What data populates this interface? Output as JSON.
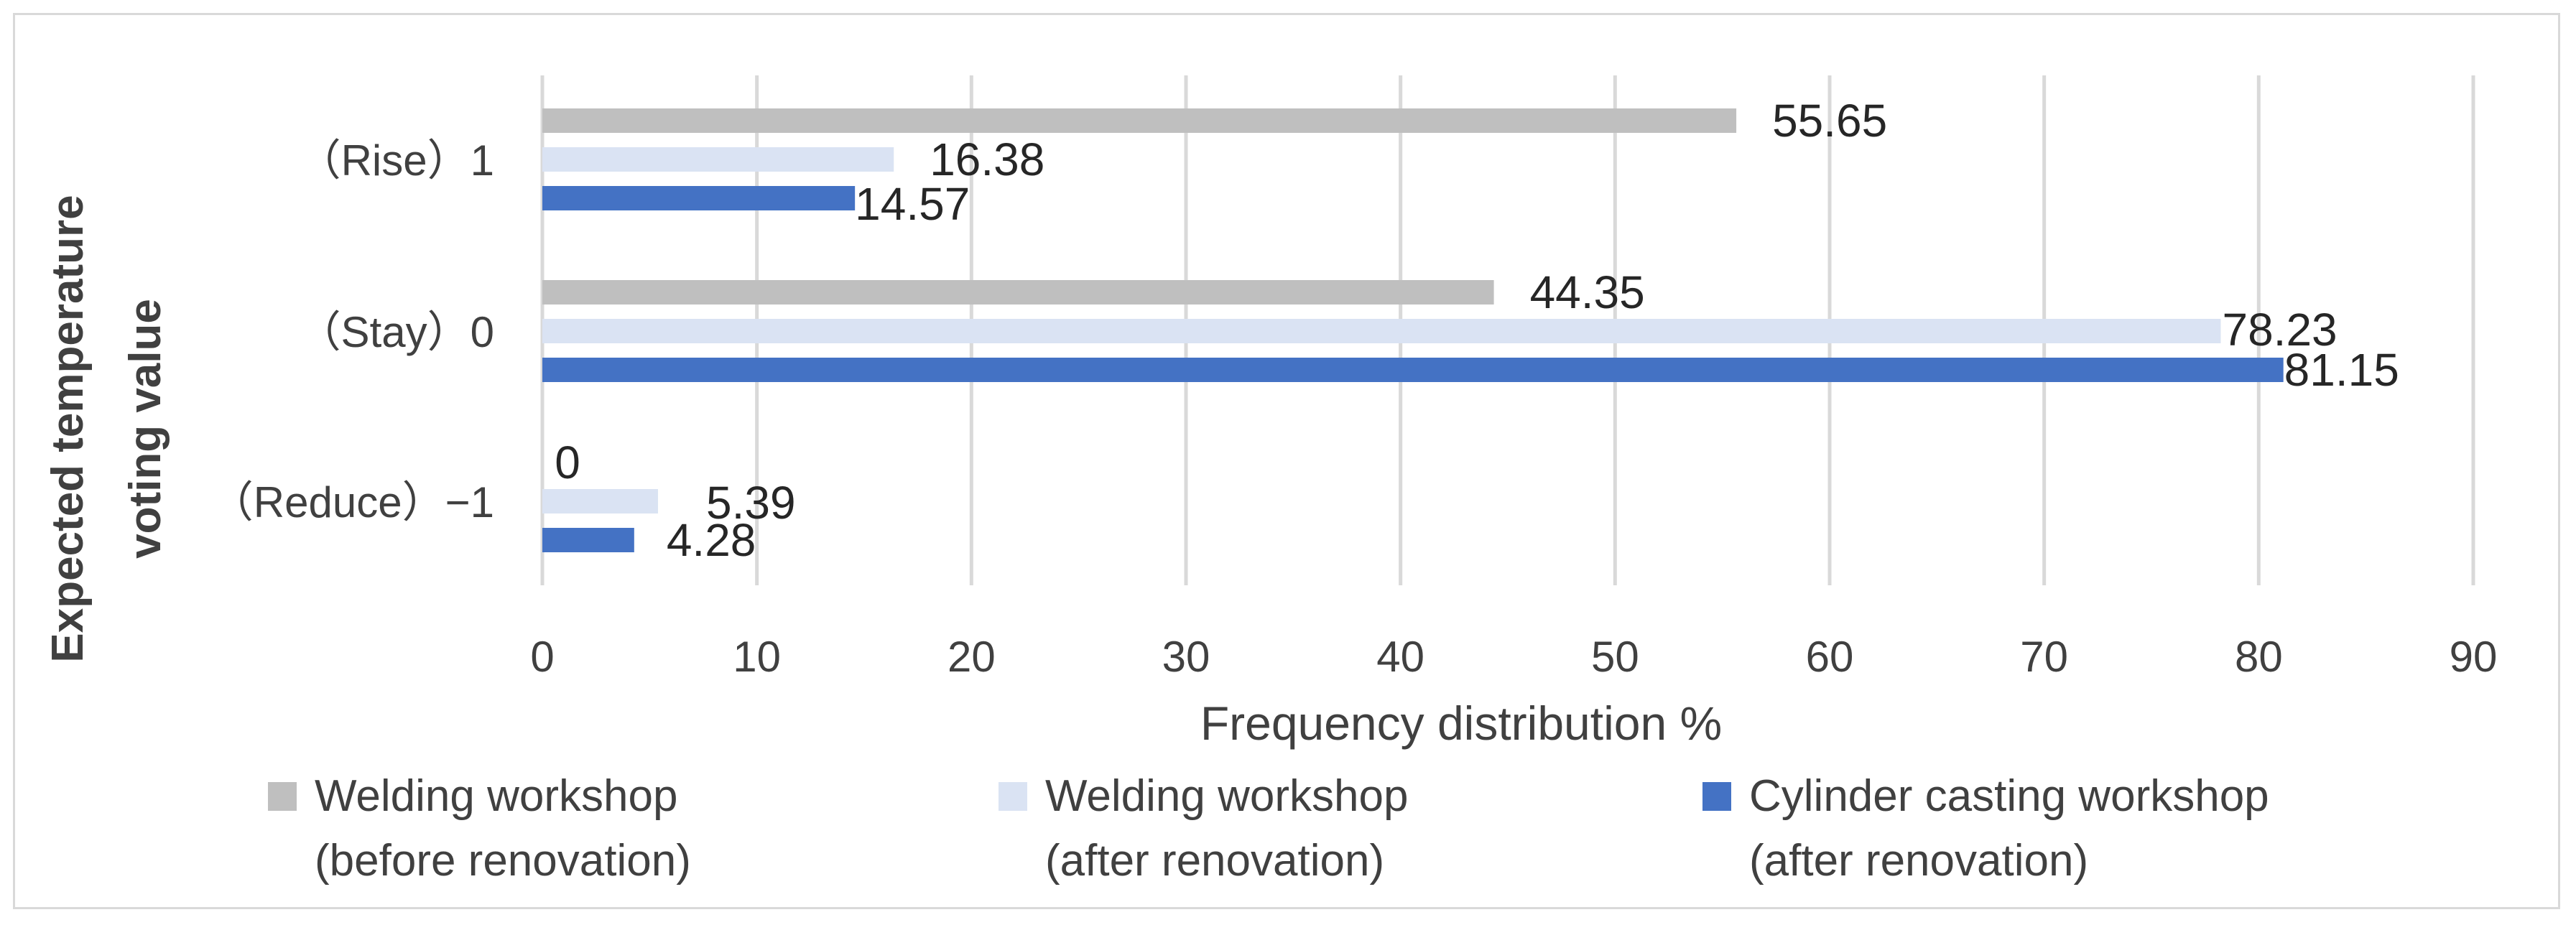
{
  "chart_data": {
    "type": "bar",
    "orientation": "horizontal",
    "categories": [
      "（Rise）1",
      "（Stay）0",
      "（Reduce）−1"
    ],
    "series": [
      {
        "name": "Welding workshop (before renovation)",
        "legend_lines": [
          "Welding workshop",
          "(before renovation)"
        ],
        "color": "#bfbfbf",
        "values": [
          55.65,
          44.35,
          0
        ],
        "labels": [
          "55.65",
          "44.35",
          "0"
        ]
      },
      {
        "name": "Welding workshop (after renovation)",
        "legend_lines": [
          "Welding workshop",
          "(after renovation)"
        ],
        "color": "#dae3f3",
        "values": [
          16.38,
          78.23,
          5.39
        ],
        "labels": [
          "16.38",
          "78.23",
          "5.39"
        ]
      },
      {
        "name": "Cylinder casting workshop (after renovation)",
        "legend_lines": [
          "Cylinder casting workshop",
          "(after renovation)"
        ],
        "color": "#4472c4",
        "values": [
          14.57,
          81.15,
          4.28
        ],
        "labels": [
          "14.57",
          "81.15",
          "4.28"
        ]
      }
    ],
    "xlim": [
      0,
      90
    ],
    "xticks": [
      "0",
      "10",
      "20",
      "30",
      "40",
      "50",
      "60",
      "70",
      "80",
      "90"
    ],
    "xlabel": "Frequency distribution %",
    "ylabel_lines": [
      "Expected temperature",
      "voting value"
    ],
    "grid": "vertical",
    "legend_position": "bottom"
  }
}
